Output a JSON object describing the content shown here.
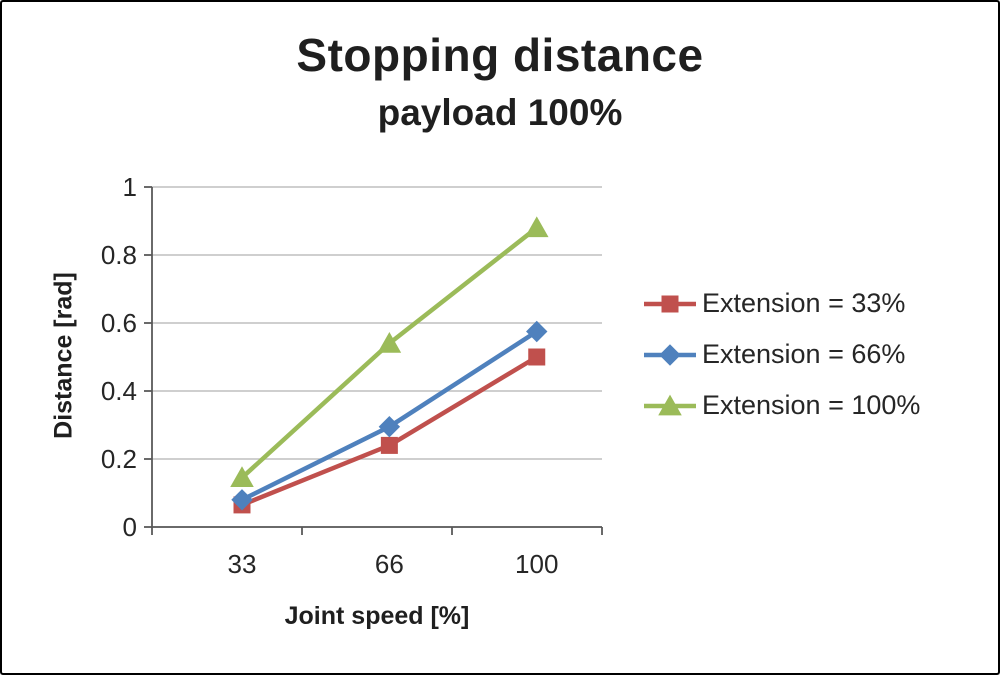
{
  "page": {
    "background": "#ffffff",
    "border_color": "#000000"
  },
  "chart_data": {
    "type": "line",
    "title": "Stopping distance",
    "subtitle": "payload 100%",
    "xlabel": "Joint speed [%]",
    "ylabel": "Distance [rad]",
    "categories": [
      "33",
      "66",
      "100"
    ],
    "yticks": [
      0,
      0.2,
      0.4,
      0.6,
      0.8,
      1
    ],
    "ytick_labels": [
      "0",
      "0.2",
      "0.4",
      "0.6",
      "0.8",
      "1"
    ],
    "ylim": [
      0,
      1
    ],
    "grid": true,
    "legend_position": "right",
    "series": [
      {
        "name": "Extension = 33%",
        "color": "#c0504d",
        "marker": "square",
        "values": [
          0.065,
          0.24,
          0.5
        ]
      },
      {
        "name": "Extension = 66%",
        "color": "#4f81bd",
        "marker": "diamond",
        "values": [
          0.08,
          0.295,
          0.575
        ]
      },
      {
        "name": "Extension = 100%",
        "color": "#9bbb59",
        "marker": "triangle",
        "values": [
          0.145,
          0.54,
          0.88
        ]
      }
    ],
    "colors": {
      "gridline": "#bfbfbf",
      "axis": "#595959",
      "text": "#262626"
    }
  }
}
